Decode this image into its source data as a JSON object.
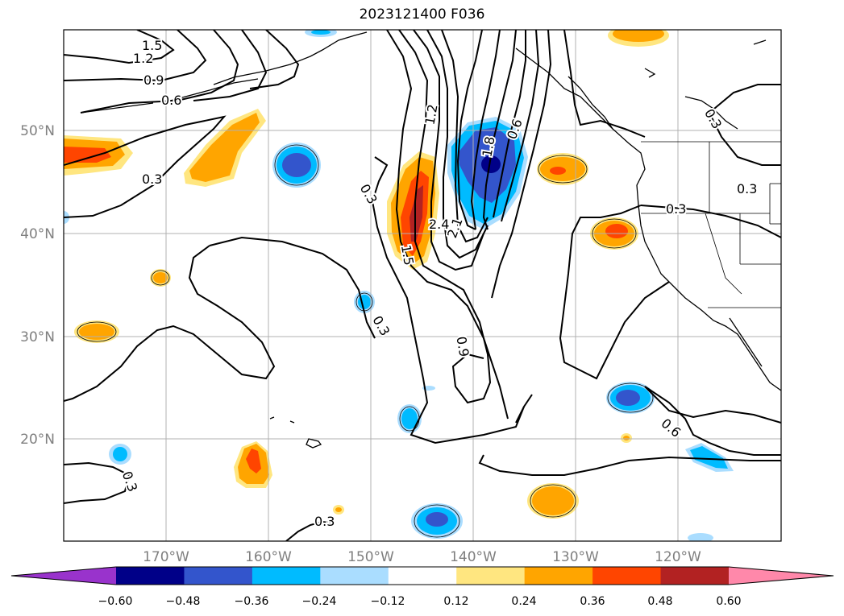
{
  "title": "2023121400 F036",
  "map": {
    "lat_labels": [
      "50°N",
      "40°N",
      "30°N",
      "20°N"
    ],
    "lon_labels": [
      "170°W",
      "160°W",
      "150°W",
      "140°W",
      "130°W",
      "120°W"
    ],
    "contour_labels": [
      "1.5",
      "1.2",
      "0.9",
      "0.6",
      "0.3",
      "0.3",
      "1.2",
      "2.4",
      "2.1",
      "1.8",
      "0.6",
      "1.5",
      "0.3",
      "0.9",
      "0.3",
      "0.6",
      "0.3",
      "0.3",
      "0.3"
    ]
  },
  "colorbar": {
    "ticks": [
      "−0.60",
      "−0.48",
      "−0.36",
      "−0.24",
      "−0.12",
      "0.12",
      "0.24",
      "0.36",
      "0.48",
      "0.60"
    ],
    "colors": [
      "#9933cc",
      "#000088",
      "#3355cc",
      "#00bbff",
      "#aaddff",
      "#ffffff",
      "#ffe680",
      "#ffa500",
      "#ff4500",
      "#b22222",
      "#ff88aa"
    ]
  }
}
